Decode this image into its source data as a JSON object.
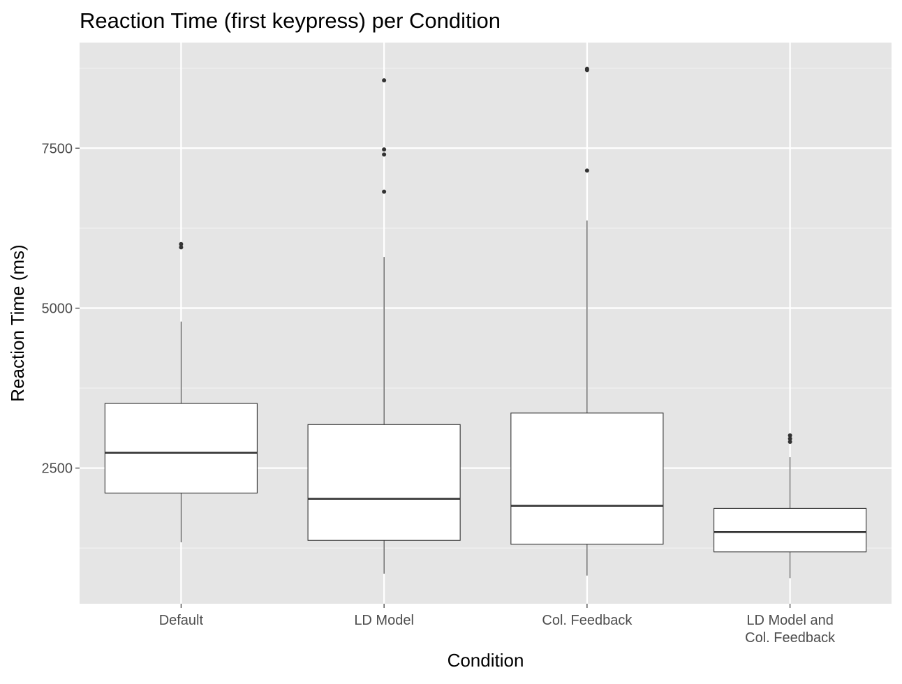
{
  "chart_data": {
    "type": "box",
    "title": "Reaction Time (first keypress) per Condition",
    "xlabel": "Condition",
    "ylabel": "Reaction Time (ms)",
    "categories": [
      "Default",
      "LD Model",
      "Col. Feedback",
      "LD Model and\nCol. Feedback"
    ],
    "yticks": [
      2500,
      5000,
      7500
    ],
    "ylim": [
      380,
      9150
    ],
    "grid": true,
    "boxes": [
      {
        "category": "Default",
        "whisker_low": 1340,
        "q1": 2110,
        "median": 2740,
        "q3": 3510,
        "whisker_high": 4790,
        "outliers": [
          5950,
          6000
        ]
      },
      {
        "category": "LD Model",
        "whisker_low": 850,
        "q1": 1370,
        "median": 2020,
        "q3": 3180,
        "whisker_high": 5800,
        "outliers": [
          6820,
          7400,
          7480,
          8560
        ]
      },
      {
        "category": "Col. Feedback",
        "whisker_low": 820,
        "q1": 1310,
        "median": 1910,
        "q3": 3360,
        "whisker_high": 6370,
        "outliers": [
          7150,
          8720,
          8740
        ]
      },
      {
        "category": "LD Model and\nCol. Feedback",
        "whisker_low": 780,
        "q1": 1190,
        "median": 1500,
        "q3": 1870,
        "whisker_high": 2670,
        "outliers": [
          2910,
          2960,
          3010
        ]
      }
    ],
    "colors": {
      "panel": "#e5e5e5",
      "grid_major": "#ffffff",
      "grid_minor": "#f2f2f2",
      "box_fill": "#ffffff",
      "box_stroke": "#333333",
      "outlier": "#333333",
      "axis_text": "#4d4d4d",
      "title": "#000000"
    }
  }
}
